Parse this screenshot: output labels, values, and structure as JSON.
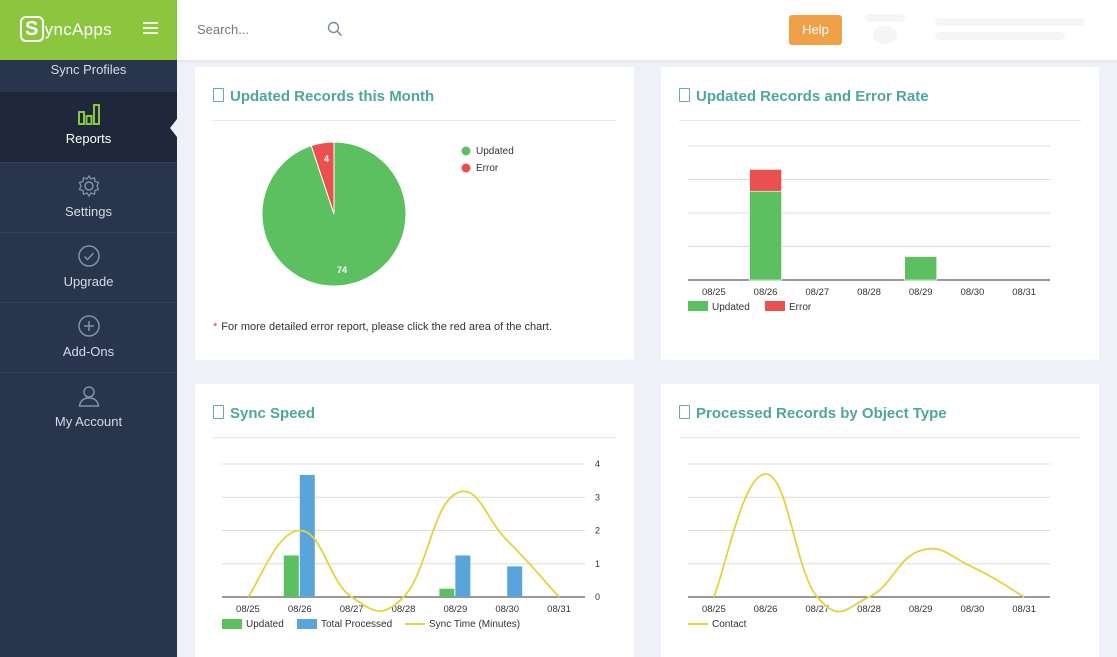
{
  "app": {
    "logo_s": "S",
    "logo_text": "yncApps"
  },
  "sidebar": {
    "items": [
      {
        "label": "Sync Profiles",
        "icon": "sync-profiles-icon"
      },
      {
        "label": "Reports",
        "icon": "bar-chart-icon",
        "active": true
      },
      {
        "label": "Settings",
        "icon": "gear-icon"
      },
      {
        "label": "Upgrade",
        "icon": "check-circle-icon"
      },
      {
        "label": "Add-Ons",
        "icon": "plus-circle-icon"
      },
      {
        "label": "My Account",
        "icon": "user-icon"
      }
    ]
  },
  "topbar": {
    "search_placeholder": "Search...",
    "help_label": "Help"
  },
  "colors": {
    "green": "#5cbf60",
    "red": "#ea5050",
    "blue": "#5aa4dc",
    "yellow": "#e6d23c",
    "accent": "#8cc63f"
  },
  "panels": {
    "updated_month": {
      "title": "Updated Records this Month",
      "note": "For more detailed error report, please click the red area of the chart.",
      "note_star": "*"
    },
    "error_rate": {
      "title": "Updated Records and Error Rate"
    },
    "sync_speed": {
      "title": "Sync Speed"
    },
    "object_type": {
      "title": "Processed Records by Object Type"
    }
  },
  "chart_data": [
    {
      "type": "pie",
      "categories": [
        "Updated",
        "Error"
      ],
      "values": [
        74,
        4
      ],
      "legend": [
        "Updated",
        "Error"
      ],
      "legend_position": "top-right"
    },
    {
      "type": "bar",
      "stacked": true,
      "categories": [
        "08/25",
        "08/26",
        "08/27",
        "08/28",
        "08/29",
        "08/30",
        "08/31"
      ],
      "series": [
        {
          "name": "Updated",
          "values": [
            0,
            53,
            0,
            0,
            14,
            0,
            0
          ]
        },
        {
          "name": "Error",
          "values": [
            0,
            13,
            0,
            0,
            0,
            0,
            0
          ]
        }
      ],
      "ylim": [
        0,
        80
      ],
      "grid": true,
      "legend_position": "bottom-left"
    },
    {
      "type": "bar",
      "categories": [
        "08/25",
        "08/26",
        "08/27",
        "08/28",
        "08/29",
        "08/30",
        "08/31"
      ],
      "series": [
        {
          "name": "Updated",
          "values": [
            0,
            1.25,
            0,
            0,
            0.25,
            0,
            0
          ]
        },
        {
          "name": "Total Processed",
          "values": [
            0,
            3.67,
            0,
            0,
            1.25,
            0.92,
            0
          ]
        },
        {
          "name": "Sync Time (Minutes)",
          "type": "line",
          "values": [
            0,
            2,
            0,
            0,
            3.1,
            1.7,
            0
          ]
        }
      ],
      "y2_ticks": [
        "0",
        "1",
        "2",
        "3",
        "4"
      ],
      "ylim": [
        0,
        4
      ],
      "grid": true,
      "legend_position": "bottom-left"
    },
    {
      "type": "line",
      "categories": [
        "08/25",
        "08/26",
        "08/27",
        "08/28",
        "08/29",
        "08/30",
        "08/31"
      ],
      "series": [
        {
          "name": "Contact",
          "values": [
            0,
            3.7,
            0,
            0,
            1.4,
            0.9,
            0
          ]
        }
      ],
      "ylim": [
        0,
        4
      ],
      "grid": true,
      "legend_position": "bottom-left"
    }
  ]
}
